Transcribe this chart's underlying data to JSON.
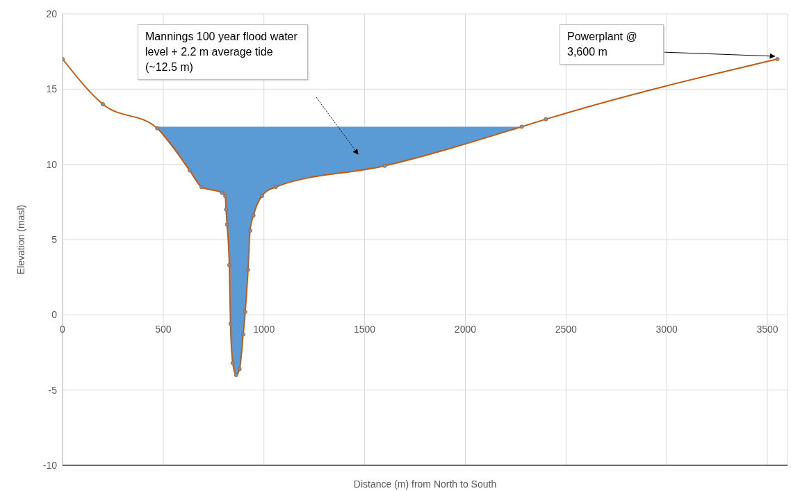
{
  "chart_data": {
    "type": "line",
    "xlabel": "Distance (m) from North to South",
    "ylabel": "Elevation (masl)",
    "xlim": [
      0,
      3600
    ],
    "xticks": [
      0,
      500,
      1000,
      1500,
      2000,
      2500,
      3000,
      3500
    ],
    "ylim": [
      -10,
      20
    ],
    "yticks": [
      -10,
      -5,
      0,
      5,
      10,
      15,
      20
    ],
    "grid": true,
    "marker": "circle",
    "line_style": "solid",
    "series": [
      {
        "color": "#c55a11",
        "x": [
          0,
          200,
          470,
          631,
          690,
          793,
          808,
          812,
          817,
          828,
          834,
          845,
          862,
          879,
          897,
          907,
          921,
          931,
          948,
          990,
          1059,
          1600,
          2280,
          2400,
          3550
        ],
        "values": [
          17,
          14,
          12.4,
          9.6,
          8.5,
          8.1,
          7.9,
          7,
          6,
          3.3,
          -0.6,
          -3.2,
          -4,
          -3.6,
          -1.3,
          0.2,
          3,
          5.6,
          6.6,
          7.9,
          8.5,
          9.9,
          12.5,
          13,
          17
        ],
        "lower": [
          null,
          null,
          12.4,
          9.6,
          8.5,
          8.1,
          7.9,
          7,
          6,
          3.3,
          -0.6,
          -3.2,
          -4,
          -3.6,
          -1.3,
          0.2,
          3,
          5.6,
          6.6,
          7.9,
          8.5,
          9.9,
          12.5,
          null,
          null
        ],
        "upper": [
          null,
          null,
          12.5,
          12.5,
          12.5,
          12.5,
          12.5,
          12.5,
          12.5,
          12.5,
          12.5,
          12.5,
          12.5,
          12.5,
          12.5,
          12.5,
          12.5,
          12.5,
          12.5,
          12.5,
          12.5,
          12.5,
          12.5,
          null,
          null
        ]
      }
    ],
    "annotations": [
      "Mannings 100 year flood water level + 2.2 m average tide (~12.5 m)",
      {
        "text": "Powerplant @ 3,600 m",
        "x": 3550,
        "y": 17
      }
    ]
  }
}
